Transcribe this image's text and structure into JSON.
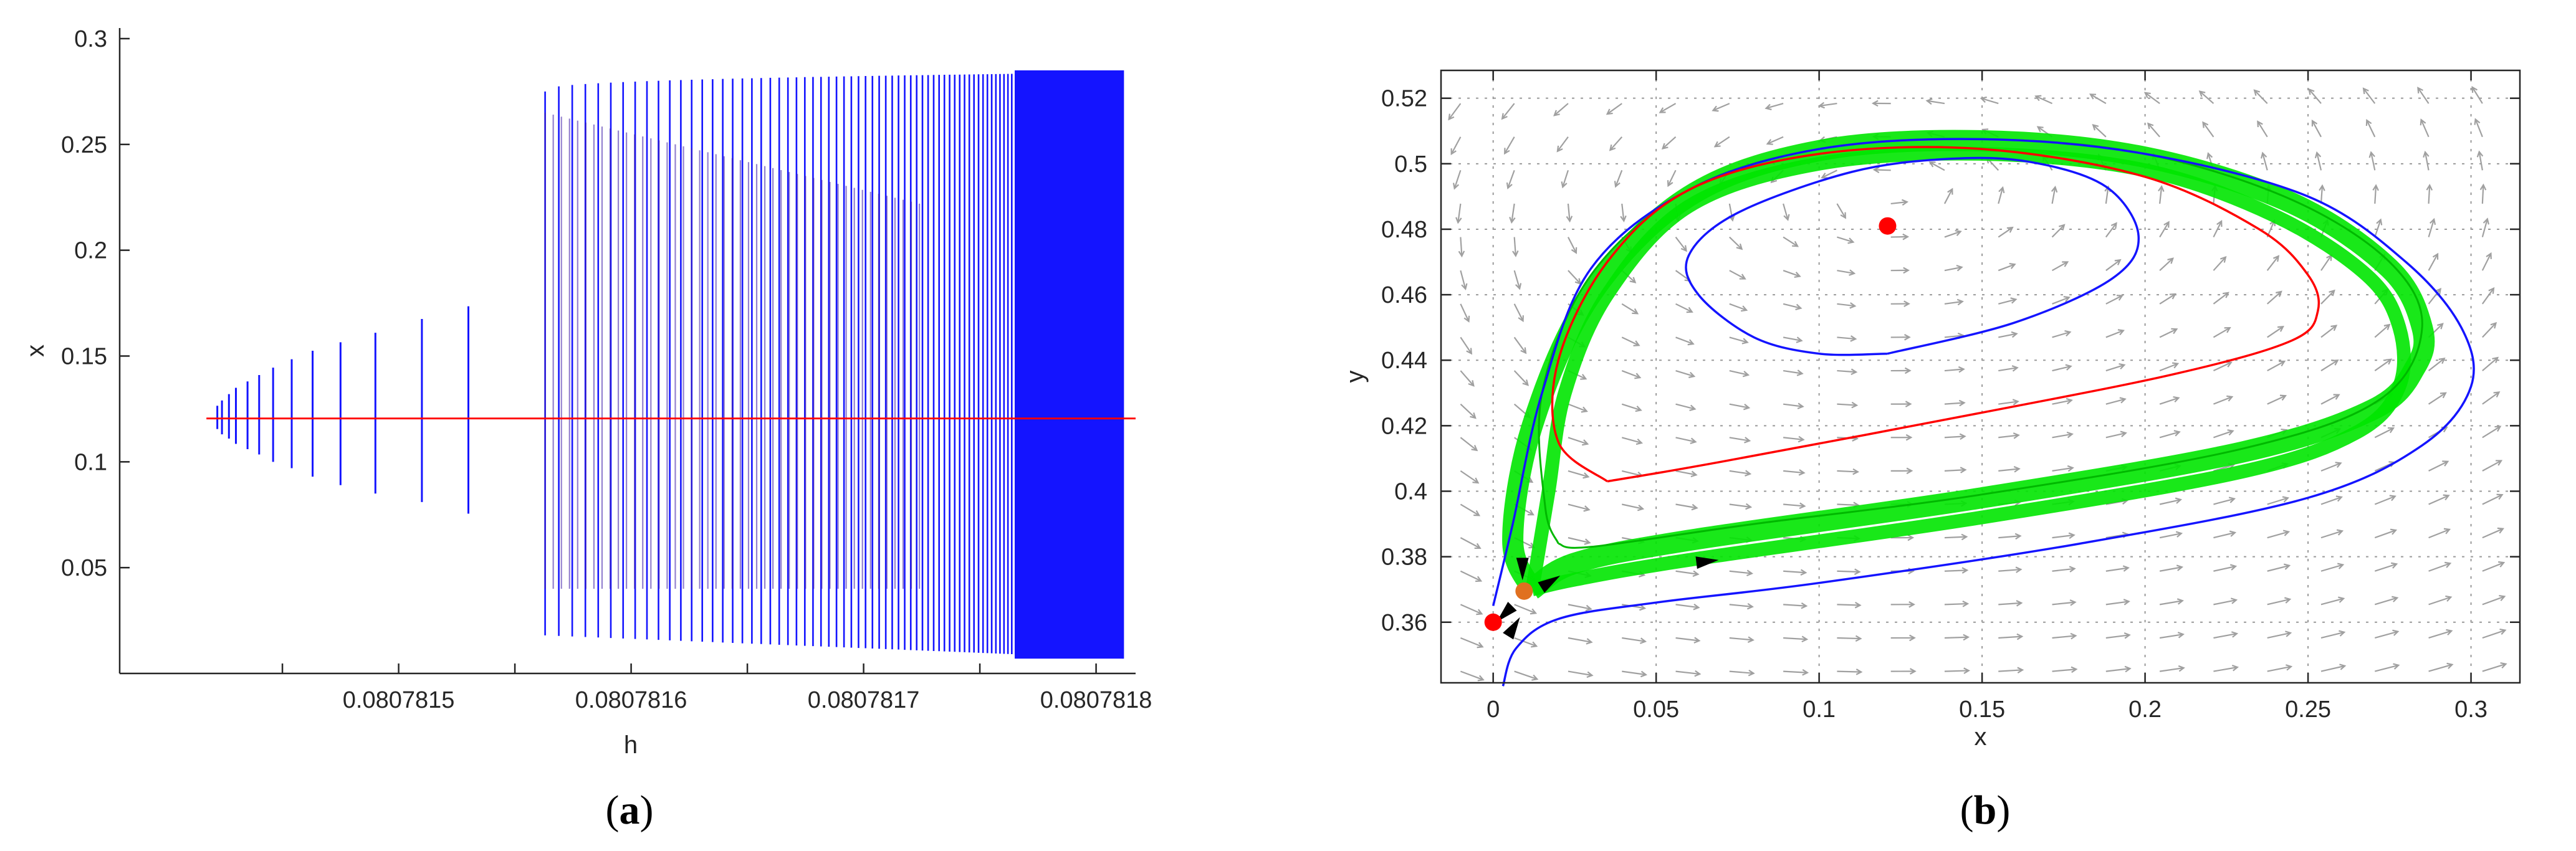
{
  "chart_data": [
    {
      "panel": "a",
      "type": "line",
      "caption_letter": "a",
      "xlabel": "h",
      "ylabel": "x",
      "xlim": [
        0.08078138,
        0.080781817
      ],
      "ylim": [
        0.0,
        0.305
      ],
      "xticks": [
        {
          "value": 0.0807815,
          "label": "0.0807815"
        },
        {
          "value": 0.0807816,
          "label": "0.0807816"
        },
        {
          "value": 0.0807817,
          "label": "0.0807817"
        },
        {
          "value": 0.0807818,
          "label": "0.0807818"
        }
      ],
      "minor_xticks": [
        0.08078145,
        0.08078155,
        0.08078165,
        0.08078175
      ],
      "yticks": [
        {
          "value": 0.05,
          "label": "0.05"
        },
        {
          "value": 0.1,
          "label": "0.1"
        },
        {
          "value": 0.15,
          "label": "0.15"
        },
        {
          "value": 0.2,
          "label": "0.2"
        },
        {
          "value": 0.25,
          "label": "0.25"
        },
        {
          "value": 0.3,
          "label": "0.3"
        }
      ],
      "colors": {
        "oscillation": "#1414ff",
        "equilibrium": "#ff0000"
      },
      "equilibrium_x": 0.1205,
      "small_oscillations": [
        {
          "h": 0.08078142,
          "min": 0.1205,
          "max": 0.1205
        },
        {
          "h": 0.080781422,
          "min": 0.1155,
          "max": 0.1265
        },
        {
          "h": 0.080781424,
          "min": 0.113,
          "max": 0.129
        },
        {
          "h": 0.080781427,
          "min": 0.111,
          "max": 0.132
        },
        {
          "h": 0.08078143,
          "min": 0.1085,
          "max": 0.135
        },
        {
          "h": 0.080781435,
          "min": 0.106,
          "max": 0.138
        },
        {
          "h": 0.08078144,
          "min": 0.1035,
          "max": 0.141
        },
        {
          "h": 0.080781446,
          "min": 0.1,
          "max": 0.1445
        },
        {
          "h": 0.080781454,
          "min": 0.097,
          "max": 0.1485
        },
        {
          "h": 0.080781463,
          "min": 0.093,
          "max": 0.1525
        },
        {
          "h": 0.080781475,
          "min": 0.089,
          "max": 0.1565
        },
        {
          "h": 0.08078149,
          "min": 0.085,
          "max": 0.161
        },
        {
          "h": 0.08078151,
          "min": 0.081,
          "max": 0.1675
        },
        {
          "h": 0.08078153,
          "min": 0.0755,
          "max": 0.1735
        }
      ],
      "large_oscillation_band": {
        "h_start": 0.080781563,
        "h_end": 0.080781812,
        "min_start": 0.018,
        "min_end": 0.007,
        "max_start": 0.275,
        "max_end": 0.284
      },
      "inner_band": {
        "h_start": 0.080781563,
        "h_end": 0.080781724,
        "min": 0.04,
        "max_start": 0.265,
        "max_end": 0.222
      }
    },
    {
      "panel": "b",
      "type": "line",
      "caption_letter": "b",
      "xlabel": "x",
      "ylabel": "y",
      "xlim": [
        -0.016,
        0.315
      ],
      "ylim": [
        0.3415,
        0.5285
      ],
      "xticks": [
        {
          "value": 0,
          "label": "0"
        },
        {
          "value": 0.05,
          "label": "0.05"
        },
        {
          "value": 0.1,
          "label": "0.1"
        },
        {
          "value": 0.15,
          "label": "0.15"
        },
        {
          "value": 0.2,
          "label": "0.2"
        },
        {
          "value": 0.25,
          "label": "0.25"
        },
        {
          "value": 0.3,
          "label": "0.3"
        }
      ],
      "yticks": [
        {
          "value": 0.36,
          "label": "0.36"
        },
        {
          "value": 0.38,
          "label": "0.38"
        },
        {
          "value": 0.4,
          "label": "0.4"
        },
        {
          "value": 0.42,
          "label": "0.42"
        },
        {
          "value": 0.44,
          "label": "0.44"
        },
        {
          "value": 0.46,
          "label": "0.46"
        },
        {
          "value": 0.48,
          "label": "0.48"
        },
        {
          "value": 0.5,
          "label": "0.5"
        },
        {
          "value": 0.52,
          "label": "0.52"
        }
      ],
      "grid": true,
      "colors": {
        "inner_cycle": "#1414ff",
        "red_cycle": "#ff0000",
        "green_band": "#00e600",
        "outer_trajectory": "#1414ff",
        "vector_field": "#a0a0a0",
        "equilibrium": "#ff0000",
        "saddle": "#e07020",
        "arrow": "#000000"
      },
      "equilibria": [
        {
          "x": 0.0,
          "y": 0.36,
          "color": "#ff0000"
        },
        {
          "x": 0.121,
          "y": 0.481,
          "color": "#ff0000"
        },
        {
          "x": 0.0095,
          "y": 0.3695,
          "color": "#e07020"
        }
      ],
      "inner_blue_cycle": [
        [
          0.121,
          0.442
        ],
        [
          0.16,
          0.4515
        ],
        [
          0.19,
          0.465
        ],
        [
          0.198,
          0.478
        ],
        [
          0.188,
          0.493
        ],
        [
          0.165,
          0.5005
        ],
        [
          0.14,
          0.5015
        ],
        [
          0.11,
          0.4975
        ],
        [
          0.075,
          0.485
        ],
        [
          0.06,
          0.472
        ],
        [
          0.063,
          0.46
        ],
        [
          0.08,
          0.447
        ],
        [
          0.1,
          0.442
        ],
        [
          0.121,
          0.442
        ]
      ],
      "red_cycle": [
        [
          0.035,
          0.403
        ],
        [
          0.07,
          0.409
        ],
        [
          0.15,
          0.424
        ],
        [
          0.21,
          0.436
        ],
        [
          0.245,
          0.446
        ],
        [
          0.253,
          0.455
        ],
        [
          0.25,
          0.466
        ],
        [
          0.235,
          0.48
        ],
        [
          0.2,
          0.496
        ],
        [
          0.15,
          0.5045
        ],
        [
          0.1,
          0.503
        ],
        [
          0.06,
          0.492
        ],
        [
          0.035,
          0.47
        ],
        [
          0.02,
          0.44
        ],
        [
          0.02,
          0.415
        ],
        [
          0.035,
          0.403
        ]
      ],
      "green_band_upper": [
        [
          0.012,
          0.37
        ],
        [
          0.006,
          0.385
        ],
        [
          0.012,
          0.42
        ],
        [
          0.03,
          0.46
        ],
        [
          0.06,
          0.49
        ],
        [
          0.1,
          0.504
        ],
        [
          0.15,
          0.507
        ],
        [
          0.2,
          0.502
        ],
        [
          0.245,
          0.488
        ],
        [
          0.275,
          0.468
        ],
        [
          0.285,
          0.45
        ],
        [
          0.283,
          0.438
        ],
        [
          0.27,
          0.425
        ],
        [
          0.23,
          0.412
        ],
        [
          0.15,
          0.398
        ],
        [
          0.06,
          0.385
        ],
        [
          0.025,
          0.378
        ],
        [
          0.012,
          0.37
        ]
      ],
      "green_band_lower": [
        [
          0.012,
          0.37
        ],
        [
          0.025,
          0.373
        ],
        [
          0.06,
          0.379
        ],
        [
          0.15,
          0.392
        ],
        [
          0.23,
          0.406
        ],
        [
          0.265,
          0.418
        ],
        [
          0.278,
          0.432
        ],
        [
          0.278,
          0.45
        ],
        [
          0.268,
          0.466
        ],
        [
          0.24,
          0.484
        ],
        [
          0.2,
          0.498
        ],
        [
          0.15,
          0.503
        ],
        [
          0.1,
          0.5
        ],
        [
          0.06,
          0.487
        ],
        [
          0.035,
          0.46
        ],
        [
          0.022,
          0.43
        ],
        [
          0.017,
          0.4
        ],
        [
          0.012,
          0.37
        ]
      ],
      "green_loop_edge": [
        [
          0.02,
          0.384
        ],
        [
          0.03,
          0.383
        ],
        [
          0.08,
          0.39
        ],
        [
          0.15,
          0.399
        ],
        [
          0.23,
          0.413
        ],
        [
          0.272,
          0.428
        ],
        [
          0.285,
          0.45
        ],
        [
          0.275,
          0.47
        ],
        [
          0.245,
          0.489
        ],
        [
          0.2,
          0.503
        ],
        [
          0.15,
          0.5075
        ],
        [
          0.1,
          0.5045
        ],
        [
          0.06,
          0.492
        ],
        [
          0.03,
          0.466
        ],
        [
          0.015,
          0.43
        ],
        [
          0.016,
          0.395
        ],
        [
          0.02,
          0.384
        ]
      ],
      "outer_blue_traj": [
        [
          0.003,
          0.3405
        ],
        [
          0.007,
          0.352
        ],
        [
          0.02,
          0.361
        ],
        [
          0.05,
          0.366
        ],
        [
          0.1,
          0.372
        ],
        [
          0.18,
          0.384
        ],
        [
          0.25,
          0.398
        ],
        [
          0.285,
          0.414
        ],
        [
          0.3,
          0.432
        ],
        [
          0.297,
          0.45
        ],
        [
          0.28,
          0.47
        ],
        [
          0.25,
          0.49
        ],
        [
          0.2,
          0.503
        ],
        [
          0.15,
          0.5075
        ],
        [
          0.1,
          0.5045
        ],
        [
          0.06,
          0.492
        ],
        [
          0.03,
          0.468
        ],
        [
          0.015,
          0.43
        ],
        [
          0.006,
          0.39
        ],
        [
          0.0,
          0.365
        ]
      ],
      "direction_arrows": [
        {
          "x": 0.065,
          "y": 0.3785,
          "dx": 1,
          "dy": 0.12
        },
        {
          "x": 0.004,
          "y": 0.363,
          "dx": -0.6,
          "dy": -0.6
        },
        {
          "x": 0.009,
          "y": 0.377,
          "dx": 0,
          "dy": -1
        },
        {
          "x": 0.017,
          "y": 0.372,
          "dx": 0.8,
          "dy": 0.5
        },
        {
          "x": 0.006,
          "y": 0.358,
          "dx": 0.5,
          "dy": 0.8
        }
      ]
    }
  ]
}
